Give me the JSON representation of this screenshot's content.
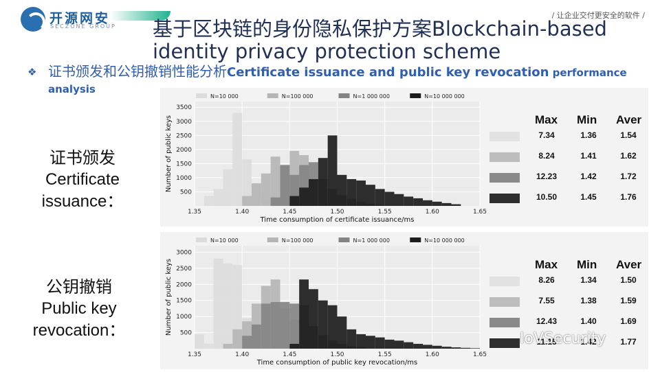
{
  "header": {
    "logo_cn": "开源网安",
    "logo_en": "SECZONE GROUP",
    "slogan": "/ 让企业交付更安全的软件 /"
  },
  "title": "基于区块链的身份隐私保护方案Blockchain-based identity privacy protection scheme",
  "subtitle": {
    "bullet": "❖",
    "cn": "证书颁发和公钥撤销性能分析",
    "en_main": "Certificate issuance and public key revocation",
    "en_small": " performance analysis"
  },
  "sections": [
    {
      "label_cn": "证书颁发",
      "label_en1": "Certificate",
      "label_en2": "issuance："
    },
    {
      "label_cn": "公钥撤销",
      "label_en1": "Public key",
      "label_en2": "revocation："
    }
  ],
  "stats_headers": [
    "Max",
    "Min",
    "Aver"
  ],
  "stats": [
    {
      "rows": [
        [
          "7.34",
          "1.36",
          "1.54"
        ],
        [
          "8.24",
          "1.41",
          "1.62"
        ],
        [
          "12.23",
          "1.42",
          "1.72"
        ],
        [
          "10.50",
          "1.45",
          "1.76"
        ]
      ]
    },
    {
      "rows": [
        [
          "8.26",
          "1.34",
          "1.50"
        ],
        [
          "7.55",
          "1.38",
          "1.59"
        ],
        [
          "12.43",
          "1.40",
          "1.69"
        ],
        [
          "11.15",
          "1.42",
          "1.77"
        ]
      ]
    }
  ],
  "swatch_colors": [
    "#e2e2e2",
    "#bdbdbd",
    "#8a8a8a",
    "#2e2e2e"
  ],
  "watermark": "IoVSecurity",
  "chart_data": [
    {
      "type": "bar",
      "xlabel": "Time consumption of certificate issuance/ms",
      "ylabel": "Number of public keys",
      "xlim": [
        1.35,
        1.65
      ],
      "ylim": [
        0,
        3700
      ],
      "xticks": [
        "1.35",
        "1.40",
        "1.45",
        "1.50",
        "1.55",
        "1.60",
        "1.65"
      ],
      "yticks": [
        "500",
        "1000",
        "1500",
        "2000",
        "2500",
        "3000",
        "3500"
      ],
      "legend": "top",
      "bin_width": 0.01,
      "series": [
        {
          "name": "N=10 000",
          "color": "#dcdcdc",
          "x": [
            1.36,
            1.37,
            1.38,
            1.39,
            1.4,
            1.41,
            1.42,
            1.43
          ],
          "values": [
            350,
            600,
            1300,
            3300,
            1650,
            800,
            250,
            80
          ]
        },
        {
          "name": "N=100 000",
          "color": "#b5b5b5",
          "x": [
            1.4,
            1.41,
            1.42,
            1.43,
            1.44,
            1.45,
            1.46,
            1.47,
            1.48
          ],
          "values": [
            350,
            800,
            1150,
            1750,
            1450,
            1950,
            1800,
            800,
            200
          ]
        },
        {
          "name": "N=1 000 000",
          "color": "#848484",
          "x": [
            1.43,
            1.44,
            1.45,
            1.46,
            1.47,
            1.48,
            1.49,
            1.5,
            1.51,
            1.52,
            1.53,
            1.54
          ],
          "values": [
            300,
            1450,
            1100,
            1450,
            1550,
            950,
            600,
            380,
            250,
            150,
            80,
            40
          ]
        },
        {
          "name": "N=10 000 000",
          "color": "#1c1c1c",
          "x": [
            1.45,
            1.46,
            1.47,
            1.48,
            1.49,
            1.5,
            1.51,
            1.52,
            1.53,
            1.54,
            1.55,
            1.56,
            1.57,
            1.58,
            1.59,
            1.6,
            1.61,
            1.62
          ],
          "values": [
            350,
            650,
            950,
            1700,
            2500,
            1100,
            950,
            900,
            750,
            600,
            500,
            420,
            330,
            270,
            200,
            150,
            100,
            60
          ]
        }
      ]
    },
    {
      "type": "bar",
      "xlabel": "Time consumption of public key revocation/ms",
      "ylabel": "Number of public keys",
      "xlim": [
        1.35,
        1.65
      ],
      "ylim": [
        0,
        3200
      ],
      "xticks": [
        "1.35",
        "1.40",
        "1.45",
        "1.50",
        "1.55",
        "1.60",
        "1.65"
      ],
      "yticks": [
        "500",
        "1000",
        "1500",
        "2000",
        "2500",
        "3000"
      ],
      "legend": "top",
      "bin_width": 0.01,
      "series": [
        {
          "name": "N=10 000",
          "color": "#dcdcdc",
          "x": [
            1.35,
            1.36,
            1.37,
            1.38,
            1.39,
            1.4,
            1.41,
            1.42
          ],
          "values": [
            450,
            150,
            2800,
            2650,
            2600,
            950,
            300,
            80
          ]
        },
        {
          "name": "N=100 000",
          "color": "#b5b5b5",
          "x": [
            1.38,
            1.39,
            1.4,
            1.41,
            1.42,
            1.43,
            1.44,
            1.45,
            1.46,
            1.47
          ],
          "values": [
            150,
            600,
            850,
            1400,
            1950,
            2150,
            1250,
            900,
            350,
            100
          ]
        },
        {
          "name": "N=1 000 000",
          "color": "#848484",
          "x": [
            1.4,
            1.41,
            1.42,
            1.43,
            1.44,
            1.45,
            1.46,
            1.47,
            1.48,
            1.49,
            1.5,
            1.51,
            1.52
          ],
          "values": [
            400,
            750,
            1400,
            1450,
            1450,
            1400,
            1350,
            700,
            420,
            250,
            140,
            70,
            40
          ]
        },
        {
          "name": "N=10 000 000",
          "color": "#1c1c1c",
          "x": [
            1.45,
            1.46,
            1.47,
            1.48,
            1.49,
            1.5,
            1.51,
            1.52,
            1.53,
            1.54,
            1.55,
            1.56,
            1.57,
            1.58,
            1.59,
            1.6,
            1.61,
            1.62,
            1.63,
            1.64
          ],
          "values": [
            150,
            2150,
            1850,
            1500,
            1350,
            1000,
            600,
            450,
            400,
            350,
            280,
            250,
            200,
            150,
            120,
            90,
            60,
            40,
            25,
            15
          ]
        }
      ]
    }
  ]
}
